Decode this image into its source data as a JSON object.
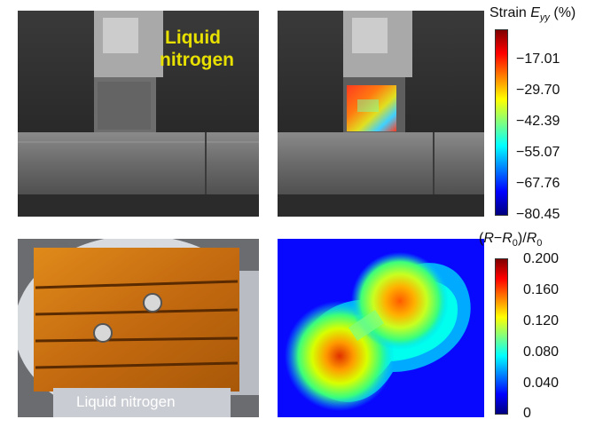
{
  "panel_top_left": {
    "label_line1": "Liquid",
    "label_line2": "nitrogen"
  },
  "strain_colorbar": {
    "title_prefix": "Strain ",
    "title_var": "E",
    "title_sub": "yy",
    "title_unit": " (%)",
    "ticks": [
      "−17.01",
      "−29.70",
      "−42.39",
      "−55.07",
      "−67.76",
      "−80.45"
    ],
    "range": [
      -80.45,
      -4.32
    ]
  },
  "resistance_colorbar": {
    "title": "(R−R0)/R0",
    "title_a": "(",
    "title_r1": "R",
    "title_minus": "−",
    "title_r2": "R",
    "title_sub1": "0",
    "title_close": ")/",
    "title_r3": "R",
    "title_sub2": "0",
    "ticks": [
      "0.200",
      "0.160",
      "0.120",
      "0.080",
      "0.040",
      "0"
    ],
    "range": [
      0,
      0.2
    ]
  },
  "panel_bottom_left": {
    "label": "Liquid nitrogen"
  },
  "colors": {
    "jet": [
      "#00007f",
      "#0000ff",
      "#007fff",
      "#00ffff",
      "#7fff7f",
      "#ffff00",
      "#ff7f00",
      "#ff0000",
      "#7f0000"
    ],
    "label_yellow": "#e8e000"
  }
}
